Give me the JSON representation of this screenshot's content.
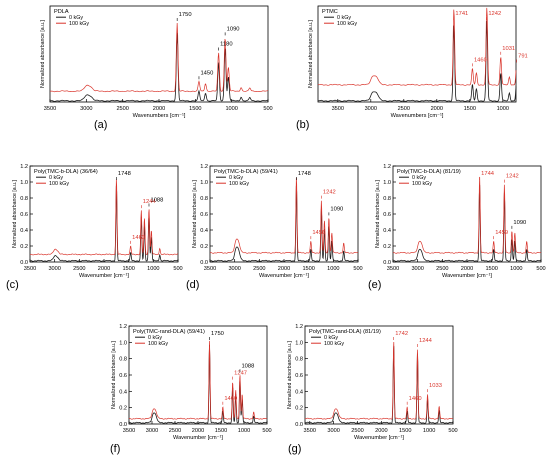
{
  "panel_letters": [
    "(a)",
    "(b)",
    "(c)",
    "(d)",
    "(e)",
    "(f)",
    "(g)"
  ],
  "colors": {
    "series_0kGy": "#1a1a1a",
    "series_100kGy": "#d9342b",
    "axis": "#000000",
    "annotation_red": "#d9342b"
  },
  "chart_data": [
    {
      "type": "line",
      "panel": "(a)",
      "title": "PDLA",
      "xlabel": "Wavenumbers [cm⁻¹]",
      "ylabel": "Normalized absorbance [a.u.]",
      "xlim": [
        3500,
        500
      ],
      "xticks": [
        "3500",
        "3000",
        "2500",
        "2000",
        "1500",
        "1000",
        "500"
      ],
      "ylim": [
        0,
        1.2
      ],
      "yticks": [],
      "legend": "top-left",
      "series": [
        {
          "name": "0 kGy",
          "color": "#1a1a1a",
          "offset": 0.0
        },
        {
          "name": "100 kGy",
          "color": "#d9342b",
          "offset": 0.12
        }
      ],
      "peaks": [
        {
          "x": 3000,
          "y": 0.06
        },
        {
          "x": 2945,
          "y": 0.05
        },
        {
          "x": 1750,
          "y": 0.85
        },
        {
          "x": 1450,
          "y": 0.12
        },
        {
          "x": 1360,
          "y": 0.1
        },
        {
          "x": 1180,
          "y": 0.48
        },
        {
          "x": 1090,
          "y": 0.68
        },
        {
          "x": 1045,
          "y": 0.3
        },
        {
          "x": 870,
          "y": 0.05
        },
        {
          "x": 750,
          "y": 0.04
        }
      ],
      "annotations": [
        {
          "text": "1750",
          "x": 1750,
          "color": "black"
        },
        {
          "text": "1450",
          "x": 1450,
          "color": "black"
        },
        {
          "text": "1180",
          "x": 1180,
          "color": "black"
        },
        {
          "text": "1090",
          "x": 1090,
          "color": "black"
        }
      ]
    },
    {
      "type": "line",
      "panel": "(b)",
      "title": "PTMC",
      "xlabel": "Wavenumbers [cm⁻¹]",
      "ylabel": "Normalized absorbance [a.u.]",
      "xlim": [
        3800,
        800
      ],
      "xticks": [
        "3500",
        "3000",
        "2500",
        "2000",
        "1500",
        "1000"
      ],
      "ylim": [
        0,
        1.2
      ],
      "yticks": [],
      "legend": "top-left",
      "series": [
        {
          "name": "0 kGy",
          "color": "#1a1a1a",
          "offset": 0.0
        },
        {
          "name": "100 kGy",
          "color": "#d9342b",
          "offset": 0.2
        }
      ],
      "peaks": [
        {
          "x": 2970,
          "y": 0.1
        },
        {
          "x": 2910,
          "y": 0.08
        },
        {
          "x": 1741,
          "y": 0.95
        },
        {
          "x": 1460,
          "y": 0.2
        },
        {
          "x": 1400,
          "y": 0.15
        },
        {
          "x": 1242,
          "y": 1.0
        },
        {
          "x": 1031,
          "y": 0.35
        },
        {
          "x": 900,
          "y": 0.1
        },
        {
          "x": 791,
          "y": 0.25
        }
      ],
      "annotations": [
        {
          "text": "1741",
          "x": 1741,
          "color": "red"
        },
        {
          "text": "1242",
          "x": 1242,
          "color": "red"
        },
        {
          "text": "1460",
          "x": 1460,
          "color": "red"
        },
        {
          "text": "1031",
          "x": 1031,
          "color": "red"
        },
        {
          "text": "791",
          "x": 791,
          "color": "red"
        }
      ]
    },
    {
      "type": "line",
      "panel": "(c)",
      "title": "Poly(TMC-b-DLA) (36/64)",
      "xlabel": "Wavenumber [cm⁻¹]",
      "ylabel": "Normalized absorbance [a.u.]",
      "xlim": [
        3500,
        500
      ],
      "xticks": [
        "3500",
        "3000",
        "2500",
        "2000",
        "1500",
        "1000",
        "500"
      ],
      "ylim": [
        0,
        1.2
      ],
      "yticks": [
        "0.0",
        "0.2",
        "0.4",
        "0.6",
        "0.8",
        "1.0",
        "1.2"
      ],
      "legend": "top-left",
      "series": [
        {
          "name": "0 kGy",
          "color": "#1a1a1a",
          "offset": 0.0
        },
        {
          "name": "100 kGy",
          "color": "#d9342b",
          "offset": 0.08
        }
      ],
      "peaks": [
        {
          "x": 3000,
          "y": 0.05
        },
        {
          "x": 2950,
          "y": 0.04
        },
        {
          "x": 1748,
          "y": 0.95
        },
        {
          "x": 1460,
          "y": 0.1
        },
        {
          "x": 1244,
          "y": 0.55
        },
        {
          "x": 1180,
          "y": 0.45
        },
        {
          "x": 1088,
          "y": 0.58
        },
        {
          "x": 1040,
          "y": 0.3
        },
        {
          "x": 870,
          "y": 0.08
        }
      ],
      "annotations": [
        {
          "text": "1748",
          "x": 1748,
          "color": "black"
        },
        {
          "text": "1244",
          "x": 1244,
          "color": "red"
        },
        {
          "text": "1088",
          "x": 1088,
          "color": "black"
        },
        {
          "text": "1460",
          "x": 1460,
          "color": "red"
        }
      ]
    },
    {
      "type": "line",
      "panel": "(d)",
      "title": "Poly(TMC-b-DLA) (59/41)",
      "xlabel": "Wavenumber [cm⁻¹]",
      "ylabel": "Normalized absorbance [a.u.]",
      "xlim": [
        3500,
        500
      ],
      "xticks": [
        "3500",
        "3000",
        "2500",
        "2000",
        "1500",
        "1000",
        "500"
      ],
      "ylim": [
        0,
        1.2
      ],
      "yticks": [
        "0.0",
        "0.2",
        "0.4",
        "0.6",
        "0.8",
        "1.0",
        "1.2"
      ],
      "legend": "top-left",
      "series": [
        {
          "name": "0 kGy",
          "color": "#1a1a1a",
          "offset": 0.0
        },
        {
          "name": "100 kGy",
          "color": "#d9342b",
          "offset": 0.1
        }
      ],
      "peaks": [
        {
          "x": 2970,
          "y": 0.14
        },
        {
          "x": 2920,
          "y": 0.1
        },
        {
          "x": 1748,
          "y": 0.95
        },
        {
          "x": 1456,
          "y": 0.14
        },
        {
          "x": 1242,
          "y": 0.65
        },
        {
          "x": 1180,
          "y": 0.4
        },
        {
          "x": 1090,
          "y": 0.45
        },
        {
          "x": 1030,
          "y": 0.25
        },
        {
          "x": 790,
          "y": 0.12
        }
      ],
      "annotations": [
        {
          "text": "1748",
          "x": 1748,
          "color": "black"
        },
        {
          "text": "1242",
          "x": 1242,
          "color": "red"
        },
        {
          "text": "1090",
          "x": 1090,
          "color": "black"
        },
        {
          "text": "1456",
          "x": 1456,
          "color": "red"
        }
      ]
    },
    {
      "type": "line",
      "panel": "(e)",
      "title": "Poly(TMC-b-DLA) (81/19)",
      "xlabel": "Wavenumber [cm⁻¹]",
      "ylabel": "Normalized absorbance [a.u.]",
      "xlim": [
        3500,
        500
      ],
      "xticks": [
        "3500",
        "3000",
        "2500",
        "2000",
        "1500",
        "1000",
        "500"
      ],
      "ylim": [
        0,
        1.2
      ],
      "yticks": [
        "0.0",
        "0.2",
        "0.4",
        "0.6",
        "0.8",
        "1.0",
        "1.2"
      ],
      "legend": "top-left",
      "series": [
        {
          "name": "0 kGy",
          "color": "#1a1a1a",
          "offset": 0.0
        },
        {
          "name": "100 kGy",
          "color": "#d9342b",
          "offset": 0.1
        }
      ],
      "peaks": [
        {
          "x": 2970,
          "y": 0.12
        },
        {
          "x": 2920,
          "y": 0.08
        },
        {
          "x": 1744,
          "y": 0.95
        },
        {
          "x": 1459,
          "y": 0.14
        },
        {
          "x": 1242,
          "y": 0.85
        },
        {
          "x": 1090,
          "y": 0.28
        },
        {
          "x": 1030,
          "y": 0.25
        },
        {
          "x": 790,
          "y": 0.14
        }
      ],
      "annotations": [
        {
          "text": "1744",
          "x": 1744,
          "color": "red"
        },
        {
          "text": "1242",
          "x": 1242,
          "color": "red"
        },
        {
          "text": "1459",
          "x": 1459,
          "color": "red"
        },
        {
          "text": "1090",
          "x": 1090,
          "color": "black"
        }
      ]
    },
    {
      "type": "line",
      "panel": "(f)",
      "title": "Poly(TMC-rand-DLA) (59/41)",
      "xlabel": "Wavenumber [cm⁻¹]",
      "ylabel": "Normalized absorbance [a.u.]",
      "xlim": [
        3500,
        500
      ],
      "xticks": [
        "3500",
        "3000",
        "2500",
        "2000",
        "1500",
        "1000",
        "500"
      ],
      "ylim": [
        0,
        1.2
      ],
      "yticks": [
        "0.0",
        "0.2",
        "0.4",
        "0.6",
        "0.8",
        "1.0",
        "1.2"
      ],
      "legend": "top-left",
      "series": [
        {
          "name": "0 kGy",
          "color": "#1a1a1a",
          "offset": 0.0
        },
        {
          "name": "100 kGy",
          "color": "#d9342b",
          "offset": 0.05
        }
      ],
      "peaks": [
        {
          "x": 2970,
          "y": 0.1
        },
        {
          "x": 2920,
          "y": 0.07
        },
        {
          "x": 1750,
          "y": 0.95
        },
        {
          "x": 1460,
          "y": 0.14
        },
        {
          "x": 1247,
          "y": 0.45
        },
        {
          "x": 1180,
          "y": 0.35
        },
        {
          "x": 1088,
          "y": 0.55
        },
        {
          "x": 1040,
          "y": 0.3
        },
        {
          "x": 790,
          "y": 0.08
        }
      ],
      "annotations": [
        {
          "text": "1750",
          "x": 1750,
          "color": "black"
        },
        {
          "text": "1247",
          "x": 1247,
          "color": "red"
        },
        {
          "text": "1088",
          "x": 1088,
          "color": "black"
        },
        {
          "text": "1460",
          "x": 1460,
          "color": "red"
        }
      ]
    },
    {
      "type": "line",
      "panel": "(g)",
      "title": "Poly(TMC-rand-DLA) (81/19)",
      "xlabel": "Wavenumber [cm⁻¹]",
      "ylabel": "Normalized absorbance [a.u.]",
      "xlim": [
        3600,
        500
      ],
      "xticks": [
        "3500",
        "3000",
        "2500",
        "2000",
        "1500",
        "1000",
        "500"
      ],
      "ylim": [
        0,
        1.2
      ],
      "yticks": [
        "0.0",
        "0.2",
        "0.4",
        "0.6",
        "0.8",
        "1.0",
        "1.2"
      ],
      "legend": "top-left",
      "series": [
        {
          "name": "0 kGy",
          "color": "#1a1a1a",
          "offset": 0.0
        },
        {
          "name": "100 kGy",
          "color": "#d9342b",
          "offset": 0.05
        }
      ],
      "peaks": [
        {
          "x": 2970,
          "y": 0.1
        },
        {
          "x": 2920,
          "y": 0.07
        },
        {
          "x": 1742,
          "y": 0.95
        },
        {
          "x": 1460,
          "y": 0.14
        },
        {
          "x": 1244,
          "y": 0.85
        },
        {
          "x": 1033,
          "y": 0.3
        },
        {
          "x": 790,
          "y": 0.15
        }
      ],
      "annotations": [
        {
          "text": "1742",
          "x": 1742,
          "color": "red"
        },
        {
          "text": "1244",
          "x": 1244,
          "color": "red"
        },
        {
          "text": "1460",
          "x": 1460,
          "color": "red"
        },
        {
          "text": "1033",
          "x": 1033,
          "color": "red"
        }
      ]
    }
  ]
}
